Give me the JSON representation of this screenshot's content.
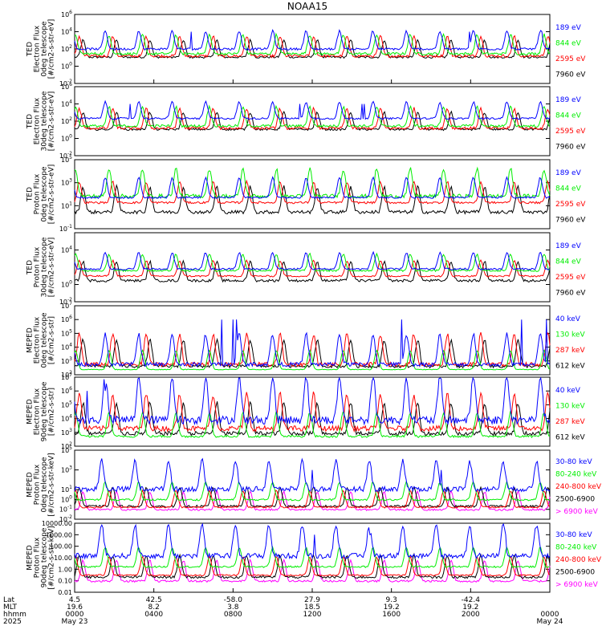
{
  "title": "NOAA15",
  "colors": {
    "black": "#000000",
    "red": "#ff0000",
    "green": "#00ee00",
    "blue": "#0000ff",
    "magenta": "#ff00ff"
  },
  "chart_data": [
    {
      "type": "line",
      "ylabel": [
        "TED",
        "Electron Flux",
        "0deg telescope",
        "[#/cm2-s-str-eV]"
      ],
      "yscale": "log",
      "ylim": [
        0.01,
        1000000
      ],
      "yticks": [
        "10^6",
        "10^4",
        "10^2",
        "10^0",
        "10^-2"
      ],
      "series": [
        {
          "name": "7960 eV",
          "color": "black",
          "level": [
            5,
            30
          ],
          "spikes": []
        },
        {
          "name": "2595 eV",
          "color": "red",
          "level": [
            5,
            60
          ],
          "spikes": []
        },
        {
          "name": "844 eV",
          "color": "green",
          "level": [
            10,
            100
          ],
          "spikes": []
        },
        {
          "name": "189 eV",
          "color": "blue",
          "level": [
            40,
            300
          ],
          "spikes": [
            10000
          ]
        }
      ]
    },
    {
      "type": "line",
      "ylabel": [
        "TED",
        "Electron Flux",
        "30deg telescope",
        "[#/cm2-s-str-eV]"
      ],
      "yscale": "log",
      "ylim": [
        0.01,
        1000000
      ],
      "yticks": [
        "10^6",
        "10^4",
        "10^2",
        "10^0",
        "10^-2"
      ],
      "series": [
        {
          "name": "7960 eV",
          "color": "black",
          "level": [
            5,
            30
          ],
          "spikes": []
        },
        {
          "name": "2595 eV",
          "color": "red",
          "level": [
            5,
            60
          ],
          "spikes": []
        },
        {
          "name": "844 eV",
          "color": "green",
          "level": [
            10,
            100
          ],
          "spikes": []
        },
        {
          "name": "189 eV",
          "color": "blue",
          "level": [
            100,
            500
          ],
          "spikes": [
            10000
          ]
        }
      ]
    },
    {
      "type": "line",
      "ylabel": [
        "TED",
        "Proton Flux",
        "0deg telescope",
        "[#/cm2-s-str-eV]"
      ],
      "yscale": "log",
      "ylim": [
        0.1,
        100000
      ],
      "yticks": [
        "10^5",
        "10^3",
        "10^1",
        "10^-1"
      ],
      "series": [
        {
          "name": "7960 eV",
          "color": "black",
          "level": [
            1,
            10
          ],
          "spikes": []
        },
        {
          "name": "2595 eV",
          "color": "red",
          "level": [
            10,
            40
          ],
          "spikes": []
        },
        {
          "name": "844 eV",
          "color": "green",
          "level": [
            20,
            300
          ],
          "spikes": []
        },
        {
          "name": "189 eV",
          "color": "blue",
          "level": [
            30,
            100
          ],
          "spikes": []
        }
      ]
    },
    {
      "type": "line",
      "ylabel": [
        "TED",
        "Proton Flux",
        "30deg telescope",
        "[#/cm2-s-str-eV]"
      ],
      "yscale": "log",
      "ylim": [
        0.01,
        1000000
      ],
      "yticks": [
        "10^4",
        "10^0",
        "10^-2"
      ],
      "series": [
        {
          "name": "7960 eV",
          "color": "black",
          "level": [
            1,
            10
          ],
          "spikes": []
        },
        {
          "name": "2595 eV",
          "color": "red",
          "level": [
            5,
            20
          ],
          "spikes": []
        },
        {
          "name": "844 eV",
          "color": "green",
          "level": [
            20,
            100
          ],
          "spikes": []
        },
        {
          "name": "189 eV",
          "color": "blue",
          "level": [
            30,
            150
          ],
          "spikes": []
        }
      ]
    },
    {
      "type": "line",
      "ylabel": [
        "MEPED",
        "Electron Flux",
        "0deg telescope",
        "[#/cm2-s-str]"
      ],
      "yscale": "log",
      "ylim": [
        100,
        10000000
      ],
      "yticks": [
        "10^7",
        "10^6",
        "10^5",
        "10^4",
        "10^3",
        "10^2"
      ],
      "series": [
        {
          "name": "612 keV",
          "color": "black",
          "level": [
            200,
            1000
          ],
          "spikes": []
        },
        {
          "name": "287 keV",
          "color": "red",
          "level": [
            200,
            2000
          ],
          "spikes": []
        },
        {
          "name": "130 keV",
          "color": "green",
          "level": [
            200,
            300
          ],
          "spikes": []
        },
        {
          "name": "40 keV",
          "color": "blue",
          "level": [
            200,
            2000
          ],
          "spikes": [
            1000000
          ]
        }
      ]
    },
    {
      "type": "line",
      "ylabel": [
        "MEPED",
        "Electron Flux",
        "90deg telescope",
        "[#/cm2-s-str]"
      ],
      "yscale": "log",
      "ylim": [
        100,
        10000000
      ],
      "yticks": [
        "10^7",
        "10^6",
        "10^5",
        "10^4",
        "10^3",
        "10^2"
      ],
      "series": [
        {
          "name": "612 keV",
          "color": "black",
          "level": [
            300,
            3000
          ],
          "spikes": []
        },
        {
          "name": "287 keV",
          "color": "red",
          "level": [
            500,
            10000
          ],
          "spikes": []
        },
        {
          "name": "130 keV",
          "color": "green",
          "level": [
            300,
            1000
          ],
          "spikes": []
        },
        {
          "name": "40 keV",
          "color": "blue",
          "level": [
            1000,
            100000
          ],
          "spikes": [
            1000000
          ]
        }
      ]
    },
    {
      "type": "line",
      "ylabel": [
        "MEPED",
        "Proton Flux",
        "0deg telescope",
        "[#/cm2-s-str-keV]"
      ],
      "yscale": "log",
      "ylim": [
        0.01,
        100000
      ],
      "yticks": [
        "10^5",
        "10^3",
        "10^1",
        "10^0",
        "10^-1",
        "10^-2"
      ],
      "series": [
        {
          "name": "> 6900 keV",
          "color": "magenta",
          "level": [
            0.05,
            0.2
          ],
          "spikes": []
        },
        {
          "name": "2500-6900",
          "color": "black",
          "level": [
            0.1,
            0.5
          ],
          "spikes": []
        },
        {
          "name": "240-800 keV",
          "color": "red",
          "level": [
            0.1,
            0.3
          ],
          "spikes": []
        },
        {
          "name": "80-240 keV",
          "color": "green",
          "level": [
            0.5,
            2
          ],
          "spikes": []
        },
        {
          "name": "30-80 keV",
          "color": "blue",
          "level": [
            2,
            100
          ],
          "spikes": [
            1000
          ]
        }
      ]
    },
    {
      "type": "line",
      "ylabel": [
        "MEPED",
        "Proton Flux",
        "90deg telescope",
        "[#/cm2-s-str-keV]"
      ],
      "yscale": "log",
      "ylim": [
        0.01,
        10000
      ],
      "yticks": [
        "10000.00",
        "1000.00",
        "100.00",
        "10.00",
        "1.00",
        "0.10",
        "0.01"
      ],
      "series": [
        {
          "name": "> 6900 keV",
          "color": "magenta",
          "level": [
            0.05,
            0.2
          ],
          "spikes": []
        },
        {
          "name": "2500-6900",
          "color": "black",
          "level": [
            0.1,
            0.5
          ],
          "spikes": []
        },
        {
          "name": "240-800 keV",
          "color": "red",
          "level": [
            0.2,
            0.5
          ],
          "spikes": []
        },
        {
          "name": "80-240 keV",
          "color": "green",
          "level": [
            1,
            3
          ],
          "spikes": []
        },
        {
          "name": "30-80 keV",
          "color": "blue",
          "level": [
            3,
            100
          ],
          "spikes": [
            1000
          ]
        }
      ]
    }
  ],
  "xaxis": {
    "row_labels": [
      "Lat",
      "MLT",
      "hhmm",
      "2025"
    ],
    "ticks": [
      {
        "lat": "4.5",
        "mlt": "19.6",
        "hhmm": "0000",
        "date": "May 23"
      },
      {
        "lat": "42.5",
        "mlt": "8.2",
        "hhmm": "0400",
        "date": ""
      },
      {
        "lat": "-58.0",
        "mlt": "3.8",
        "hhmm": "0800",
        "date": ""
      },
      {
        "lat": "27.9",
        "mlt": "18.5",
        "hhmm": "1200",
        "date": ""
      },
      {
        "lat": "9.3",
        "mlt": "19.2",
        "hhmm": "1600",
        "date": ""
      },
      {
        "lat": "-42.4",
        "mlt": "19.2",
        "hhmm": "2000",
        "date": ""
      },
      {
        "lat": "",
        "mlt": "",
        "hhmm": "0000",
        "date": "May 24"
      }
    ]
  }
}
